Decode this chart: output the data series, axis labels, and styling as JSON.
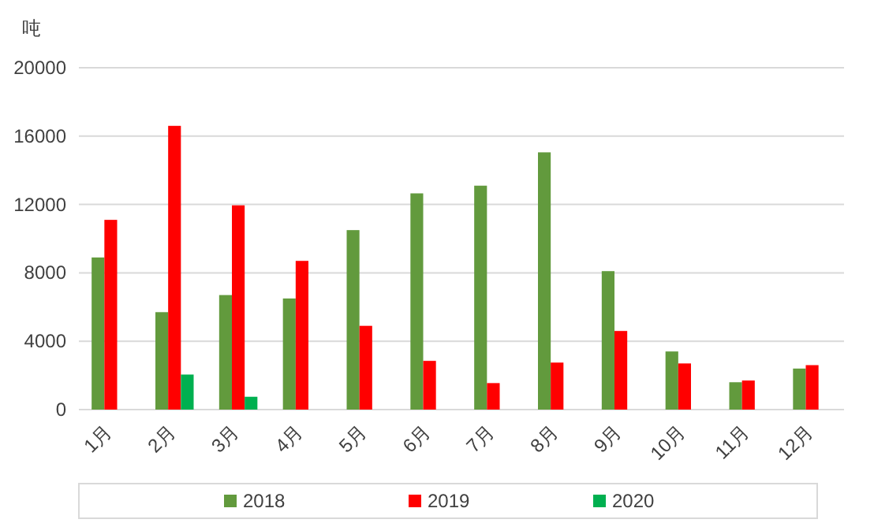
{
  "chart_data": {
    "type": "bar",
    "ylabel": "吨",
    "categories": [
      "1月",
      "2月",
      "3月",
      "4月",
      "5月",
      "6月",
      "7月",
      "8月",
      "9月",
      "10月",
      "11月",
      "12月"
    ],
    "series": [
      {
        "name": "2018",
        "color": "#629a3d",
        "values": [
          8900,
          5700,
          6700,
          6500,
          10500,
          12650,
          13100,
          15050,
          8100,
          3400,
          1600,
          2400
        ]
      },
      {
        "name": "2019",
        "color": "#ff0000",
        "values": [
          11100,
          16600,
          11950,
          8700,
          4900,
          2850,
          1550,
          2750,
          4600,
          2700,
          1700,
          2600
        ]
      },
      {
        "name": "2020",
        "color": "#00b050",
        "values": [
          null,
          2050,
          750,
          null,
          null,
          null,
          null,
          null,
          null,
          null,
          null,
          null
        ]
      }
    ],
    "ylim": [
      0,
      20000
    ],
    "yticks": [
      0,
      4000,
      8000,
      12000,
      16000,
      20000
    ],
    "grid": "y",
    "legend": "bottom"
  }
}
